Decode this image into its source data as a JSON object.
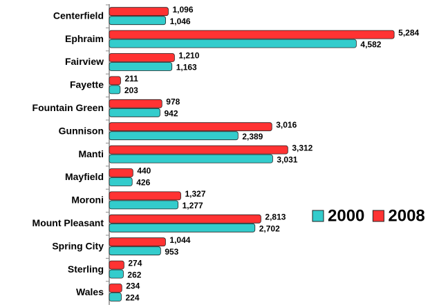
{
  "chart_data": {
    "type": "bar",
    "orientation": "horizontal",
    "categories": [
      "Centerfield",
      "Ephraim",
      "Fairview",
      "Fayette",
      "Fountain Green",
      "Gunnison",
      "Manti",
      "Mayfield",
      "Moroni",
      "Mount Pleasant",
      "Spring City",
      "Sterling",
      "Wales"
    ],
    "series": [
      {
        "name": "2000",
        "color": "#33cccc",
        "values": [
          1046,
          4582,
          1163,
          203,
          942,
          2389,
          3031,
          426,
          1277,
          2702,
          953,
          262,
          224
        ],
        "value_labels": [
          "1,046",
          "4,582",
          "1,163",
          "203",
          "942",
          "2,389",
          "3,031",
          "426",
          "1,277",
          "2,702",
          "953",
          "262",
          "224"
        ]
      },
      {
        "name": "2008",
        "color": "#ff3333",
        "values": [
          1096,
          5284,
          1210,
          211,
          978,
          3016,
          3312,
          440,
          1327,
          2813,
          1044,
          274,
          234
        ],
        "value_labels": [
          "1,096",
          "5,284",
          "1,210",
          "211",
          "978",
          "3,016",
          "3,312",
          "440",
          "1,327",
          "2,813",
          "1,044",
          "274",
          "234"
        ]
      }
    ],
    "xlim": [
      0,
      5500
    ],
    "legend": "right"
  }
}
